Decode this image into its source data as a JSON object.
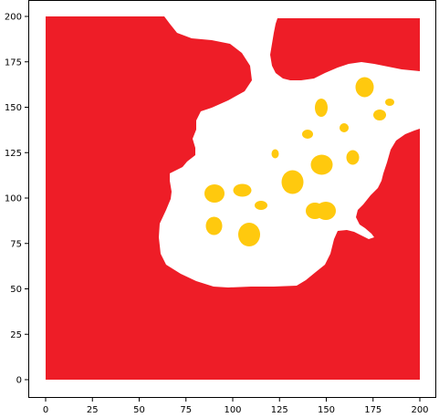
{
  "chart_data": {
    "type": "heatmap",
    "title": "",
    "xlabel": "",
    "ylabel": "",
    "xlim": [
      -7,
      207
    ],
    "ylim": [
      -10,
      210
    ],
    "grid": false,
    "x_ticks": [
      0,
      25,
      50,
      75,
      100,
      125,
      150,
      175,
      200
    ],
    "y_ticks": [
      0,
      25,
      50,
      75,
      100,
      125,
      150,
      175,
      200
    ],
    "x_tick_labels": [
      "0",
      "25",
      "50",
      "75",
      "100",
      "125",
      "150",
      "175",
      "200"
    ],
    "y_tick_labels": [
      "0",
      "25",
      "50",
      "75",
      "100",
      "125",
      "150",
      "175",
      "200"
    ],
    "grid_extent": {
      "x": [
        0,
        200
      ],
      "y": [
        0,
        200
      ]
    },
    "colors": {
      "wall": "#ee1d27",
      "free": "#ffffff",
      "target": "#ffc90e"
    },
    "regions": {
      "free_space_polygon": [
        [
          64,
          200
        ],
        [
          180,
          200
        ],
        [
          184,
          198
        ],
        [
          186,
          194
        ],
        [
          192,
          191
        ],
        [
          200,
          190
        ],
        [
          208,
          188
        ],
        [
          214,
          188
        ],
        [
          220,
          184
        ],
        [
          225,
          176
        ],
        [
          229,
          166
        ],
        [
          235,
          164
        ],
        [
          240,
          166
        ],
        [
          243,
          170
        ],
        [
          244,
          182
        ],
        [
          245,
          190
        ],
        [
          246,
          196
        ],
        [
          245,
          200
        ],
        [
          244,
          204
        ],
        [
          244,
          207
        ],
        [
          245,
          208
        ],
        [
          246,
          214
        ],
        [
          248,
          220
        ],
        [
          249,
          228
        ],
        [
          250,
          236
        ],
        [
          253,
          240
        ],
        [
          257,
          242
        ],
        [
          263,
          242
        ],
        [
          265,
          240
        ],
        [
          270,
          236
        ],
        [
          276,
          230
        ],
        [
          282,
          222
        ],
        [
          287,
          214
        ],
        [
          292,
          205
        ],
        [
          297,
          196
        ],
        [
          298,
          190
        ],
        [
          300,
          184
        ],
        [
          304,
          176
        ],
        [
          310,
          172
        ],
        [
          316,
          168
        ],
        [
          322,
          166
        ],
        [
          330,
          164
        ],
        [
          338,
          162
        ],
        [
          347,
          158
        ],
        [
          355,
          151
        ],
        [
          364,
          145
        ],
        [
          376,
          140
        ],
        [
          390,
          137
        ],
        [
          402,
          135
        ],
        [
          414,
          134
        ],
        [
          424,
          134
        ],
        [
          433,
          135
        ],
        [
          441,
          137
        ],
        [
          447,
          140
        ],
        [
          452,
          143
        ],
        [
          457,
          146
        ],
        [
          460,
          148
        ],
        [
          460,
          138
        ],
        [
          455,
          135
        ],
        [
          446,
          129
        ],
        [
          439,
          125
        ],
        [
          432,
          124
        ],
        [
          420,
          124
        ],
        [
          405,
          123
        ],
        [
          398,
          122
        ],
        [
          391,
          123
        ],
        [
          381,
          124
        ],
        [
          373,
          127
        ],
        [
          364,
          130
        ],
        [
          358,
          131
        ],
        [
          350,
          131
        ],
        [
          338,
          129
        ],
        [
          330,
          124
        ],
        [
          325,
          117
        ],
        [
          320,
          108
        ],
        [
          315,
          98
        ],
        [
          304,
          88
        ],
        [
          296,
          86
        ],
        [
          294,
          77
        ],
        [
          296,
          68
        ],
        [
          299,
          58
        ],
        [
          300,
          50
        ],
        [
          301,
          40
        ],
        [
          300,
          30
        ],
        [
          303,
          25
        ],
        [
          304,
          20
        ],
        [
          300,
          19
        ],
        [
          200,
          19
        ]
      ],
      "wall_polygons": [
        [
          [
            50,
            18
          ],
          [
            180,
            18
          ],
          [
            186,
            26
          ],
          [
            194,
            36
          ],
          [
            210,
            42
          ],
          [
            232,
            44
          ],
          [
            252,
            48
          ],
          [
            265,
            58
          ],
          [
            274,
            72
          ],
          [
            276,
            88
          ],
          [
            268,
            100
          ],
          [
            250,
            110
          ],
          [
            232,
            118
          ],
          [
            220,
            122
          ],
          [
            215,
            132
          ],
          [
            215,
            142
          ],
          [
            211,
            152
          ],
          [
            214,
            162
          ],
          [
            214,
            170
          ],
          [
            205,
            177
          ],
          [
            200,
            183
          ],
          [
            190,
            188
          ],
          [
            186,
            190
          ],
          [
            186,
            198
          ],
          [
            188,
            210
          ],
          [
            187,
            218
          ],
          [
            182,
            230
          ],
          [
            175,
            245
          ],
          [
            174,
            260
          ],
          [
            176,
            278
          ],
          [
            182,
            290
          ],
          [
            198,
            300
          ],
          [
            215,
            308
          ],
          [
            234,
            314
          ],
          [
            250,
            315
          ],
          [
            275,
            314
          ],
          [
            300,
            314
          ],
          [
            325,
            313
          ],
          [
            335,
            307
          ],
          [
            346,
            298
          ],
          [
            356,
            290
          ],
          [
            362,
            278
          ],
          [
            366,
            262
          ],
          [
            370,
            253
          ],
          [
            380,
            252
          ],
          [
            388,
            254
          ],
          [
            396,
            258
          ],
          [
            404,
            262
          ],
          [
            410,
            260
          ],
          [
            407,
            256
          ],
          [
            400,
            250
          ],
          [
            394,
            246
          ],
          [
            390,
            238
          ],
          [
            392,
            230
          ],
          [
            398,
            224
          ],
          [
            406,
            214
          ],
          [
            414,
            206
          ],
          [
            418,
            198
          ],
          [
            420,
            190
          ],
          [
            424,
            178
          ],
          [
            428,
            164
          ],
          [
            434,
            154
          ],
          [
            444,
            147
          ],
          [
            454,
            143
          ],
          [
            460,
            141
          ],
          [
            460,
            416
          ],
          [
            50,
            416
          ]
        ],
        [
          [
            304,
            20
          ],
          [
            460,
            20
          ],
          [
            460,
            78
          ],
          [
            450,
            77
          ],
          [
            440,
            76
          ],
          [
            430,
            74
          ],
          [
            420,
            72
          ],
          [
            410,
            70
          ],
          [
            396,
            68
          ],
          [
            382,
            70
          ],
          [
            370,
            74
          ],
          [
            356,
            80
          ],
          [
            344,
            86
          ],
          [
            330,
            88
          ],
          [
            318,
            88
          ],
          [
            310,
            86
          ],
          [
            302,
            80
          ],
          [
            298,
            72
          ],
          [
            296,
            60
          ],
          [
            298,
            48
          ],
          [
            300,
            36
          ],
          [
            302,
            26
          ]
        ]
      ],
      "target_blobs": [
        [
          399.5,
          95.5,
          10,
          11
        ],
        [
          427,
          112,
          5,
          4
        ],
        [
          352,
          118,
          7,
          10
        ],
        [
          416,
          126,
          7,
          6
        ],
        [
          337,
          147,
          6,
          5
        ],
        [
          377,
          140,
          5,
          5
        ],
        [
          352.5,
          180.5,
          12,
          11
        ],
        [
          386.5,
          172.5,
          7,
          8
        ],
        [
          301.5,
          168.5,
          4,
          5
        ],
        [
          320.5,
          199.5,
          12,
          13
        ],
        [
          235,
          212,
          11,
          10
        ],
        [
          265.5,
          208.5,
          10,
          7
        ],
        [
          286,
          225,
          7,
          5
        ],
        [
          345,
          231,
          10,
          9
        ],
        [
          357,
          231,
          11,
          10
        ],
        [
          234.5,
          247.5,
          9,
          10
        ],
        [
          273,
          257,
          12,
          13
        ]
      ]
    }
  }
}
